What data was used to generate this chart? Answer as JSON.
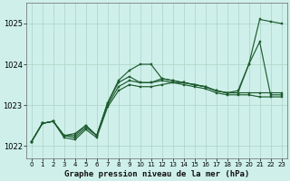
{
  "background_color": "#cff0ea",
  "grid_color": "#b0d8cc",
  "line_color": "#1e5c30",
  "marker_color": "#1e5c30",
  "title": "Graphe pression niveau de la mer (hPa)",
  "ylim": [
    1021.7,
    1025.5
  ],
  "xlim": [
    -0.5,
    23.5
  ],
  "yticks": [
    1022,
    1023,
    1024,
    1025
  ],
  "xticks": [
    0,
    1,
    2,
    3,
    4,
    5,
    6,
    7,
    8,
    9,
    10,
    11,
    12,
    13,
    14,
    15,
    16,
    17,
    18,
    19,
    20,
    21,
    22,
    23
  ],
  "series": [
    [
      1022.1,
      1022.55,
      1022.6,
      1022.25,
      1022.3,
      1022.5,
      1022.25,
      1023.05,
      1023.6,
      1023.85,
      1024.0,
      1024.0,
      1023.65,
      1023.6,
      1023.55,
      1023.5,
      1023.45,
      1023.35,
      1023.3,
      1023.35,
      1024.0,
      1025.1,
      1025.05,
      1025.0
    ],
    [
      1022.1,
      1022.55,
      1022.6,
      1022.25,
      1022.25,
      1022.5,
      1022.25,
      1023.05,
      1023.55,
      1023.7,
      1023.55,
      1023.55,
      1023.65,
      1023.6,
      1023.55,
      1023.5,
      1023.45,
      1023.35,
      1023.3,
      1023.3,
      1024.0,
      1024.55,
      1023.25,
      1023.25
    ],
    [
      1022.1,
      1022.55,
      1022.6,
      1022.25,
      1022.2,
      1022.45,
      1022.25,
      1023.0,
      1023.45,
      1023.6,
      1023.55,
      1023.55,
      1023.6,
      1023.55,
      1023.5,
      1023.45,
      1023.4,
      1023.3,
      1023.25,
      1023.25,
      1023.25,
      1023.2,
      1023.2,
      1023.2
    ],
    [
      1022.1,
      1022.55,
      1022.6,
      1022.2,
      1022.15,
      1022.4,
      1022.2,
      1022.95,
      1023.35,
      1023.5,
      1023.45,
      1023.45,
      1023.5,
      1023.55,
      1023.55,
      1023.5,
      1023.45,
      1023.35,
      1023.3,
      1023.3,
      1023.3,
      1023.3,
      1023.3,
      1023.3
    ]
  ]
}
